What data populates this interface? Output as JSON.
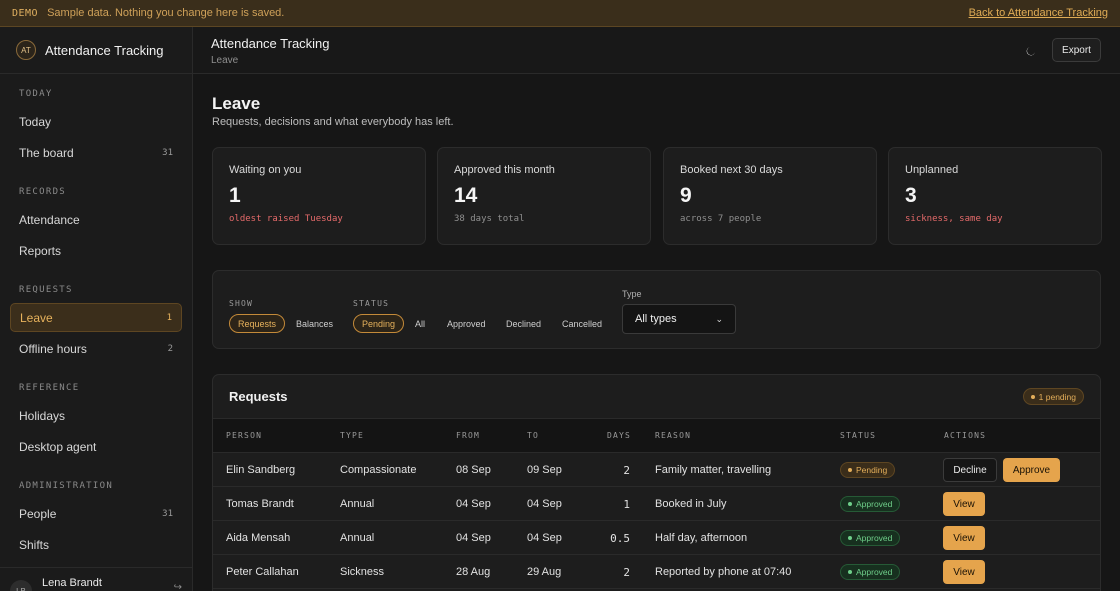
{
  "banner": {
    "tag": "DEMO",
    "message": "Sample data. Nothing you change here is saved.",
    "back_link": "Back to Attendance Tracking"
  },
  "sidebar": {
    "logo": "AT",
    "app_name": "Attendance Tracking",
    "sections": [
      {
        "label": "TODAY",
        "items": [
          {
            "label": "Today",
            "count": ""
          },
          {
            "label": "The board",
            "count": "31"
          }
        ]
      },
      {
        "label": "RECORDS",
        "items": [
          {
            "label": "Attendance",
            "count": ""
          },
          {
            "label": "Reports",
            "count": ""
          }
        ]
      },
      {
        "label": "REQUESTS",
        "items": [
          {
            "label": "Leave",
            "count": "1"
          },
          {
            "label": "Offline hours",
            "count": "2"
          }
        ]
      },
      {
        "label": "REFERENCE",
        "items": [
          {
            "label": "Holidays",
            "count": ""
          },
          {
            "label": "Desktop agent",
            "count": ""
          }
        ]
      },
      {
        "label": "ADMINISTRATION",
        "items": [
          {
            "label": "People",
            "count": "31"
          },
          {
            "label": "Shifts",
            "count": ""
          }
        ]
      }
    ],
    "user": {
      "initials": "LB",
      "name": "Lena Brandt"
    }
  },
  "header": {
    "title": "Attendance Tracking",
    "subtitle": "Leave",
    "theme_icon": "moon-icon",
    "export_label": "Export"
  },
  "page": {
    "title": "Leave",
    "subtitle": "Requests, decisions and what everybody has left."
  },
  "stats": [
    {
      "label": "Waiting on you",
      "value": "1",
      "note": "oldest raised Tuesday"
    },
    {
      "label": "Approved this month",
      "value": "14",
      "note": "38 days total"
    },
    {
      "label": "Booked next 30 days",
      "value": "9",
      "note": "across 7 people"
    },
    {
      "label": "Unplanned",
      "value": "3",
      "note": "sickness, same day"
    }
  ],
  "filters": {
    "show_label": "SHOW",
    "show_options": [
      "Requests",
      "Balances"
    ],
    "show_selected": "Requests",
    "status_label": "STATUS",
    "status_options": [
      "Pending",
      "All",
      "Approved",
      "Declined",
      "Cancelled"
    ],
    "status_selected": "Pending",
    "type_label": "Type",
    "type_value": "All types"
  },
  "requests": {
    "title": "Requests",
    "pending_badge": "1 pending",
    "columns": [
      "PERSON",
      "TYPE",
      "FROM",
      "TO",
      "DAYS",
      "REASON",
      "STATUS",
      "ACTIONS"
    ],
    "rows": [
      {
        "person": "Elin Sandberg",
        "type": "Compassionate",
        "from": "08 Sep",
        "to": "09 Sep",
        "days": "2",
        "reason": "Family matter, travelling",
        "status": "Pending",
        "actions": [
          "Decline",
          "Approve"
        ]
      },
      {
        "person": "Tomas Brandt",
        "type": "Annual",
        "from": "04 Sep",
        "to": "04 Sep",
        "days": "1",
        "reason": "Booked in July",
        "status": "Approved",
        "actions": [
          "View"
        ]
      },
      {
        "person": "Aida Mensah",
        "type": "Annual",
        "from": "04 Sep",
        "to": "04 Sep",
        "days": "0.5",
        "reason": "Half day, afternoon",
        "status": "Approved",
        "actions": [
          "View"
        ]
      },
      {
        "person": "Peter Callahan",
        "type": "Sickness",
        "from": "28 Aug",
        "to": "29 Aug",
        "days": "2",
        "reason": "Reported by phone at 07:40",
        "status": "Approved",
        "actions": [
          "View"
        ]
      }
    ]
  }
}
